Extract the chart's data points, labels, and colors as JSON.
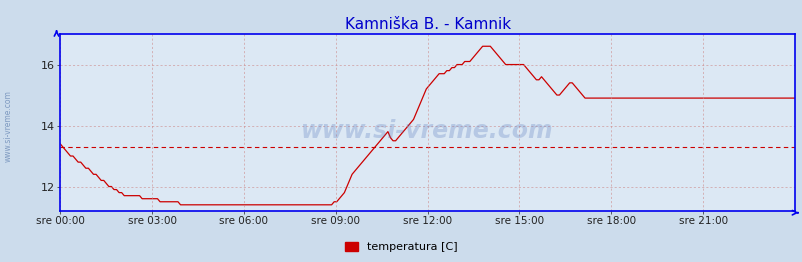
{
  "title": "Kamniška B. - Kamnik",
  "title_color": "#0000cc",
  "title_fontsize": 11,
  "bg_color": "#ccdcec",
  "plot_bg_color": "#dce8f4",
  "line_color": "#cc0000",
  "hline_color": "#cc0000",
  "hline_value": 13.3,
  "ylim": [
    11.2,
    17.0
  ],
  "yticks": [
    12,
    14,
    16
  ],
  "ylabel_color": "#333333",
  "grid_color": "#cc8888",
  "axis_color": "#0000ee",
  "watermark_color": "#5577bb",
  "watermark_text": "www.si-vreme.com",
  "sidebar_text": "www.si-vreme.com",
  "legend_label": "temperatura [C]",
  "legend_color": "#cc0000",
  "x_tick_labels": [
    "sre 00:00",
    "sre 03:00",
    "sre 06:00",
    "sre 09:00",
    "sre 12:00",
    "sre 15:00",
    "sre 18:00",
    "sre 21:00"
  ],
  "temperature_data": [
    13.4,
    13.3,
    13.2,
    13.1,
    13.0,
    13.0,
    12.9,
    12.8,
    12.8,
    12.7,
    12.6,
    12.6,
    12.5,
    12.4,
    12.4,
    12.3,
    12.2,
    12.2,
    12.1,
    12.0,
    12.0,
    11.9,
    11.9,
    11.8,
    11.8,
    11.7,
    11.7,
    11.7,
    11.7,
    11.7,
    11.7,
    11.7,
    11.6,
    11.6,
    11.6,
    11.6,
    11.6,
    11.6,
    11.6,
    11.5,
    11.5,
    11.5,
    11.5,
    11.5,
    11.5,
    11.5,
    11.5,
    11.4,
    11.4,
    11.4,
    11.4,
    11.4,
    11.4,
    11.4,
    11.4,
    11.4,
    11.4,
    11.4,
    11.4,
    11.4,
    11.4,
    11.4,
    11.4,
    11.4,
    11.4,
    11.4,
    11.4,
    11.4,
    11.4,
    11.4,
    11.4,
    11.4,
    11.4,
    11.4,
    11.4,
    11.4,
    11.4,
    11.4,
    11.4,
    11.4,
    11.4,
    11.4,
    11.4,
    11.4,
    11.4,
    11.4,
    11.4,
    11.4,
    11.4,
    11.4,
    11.4,
    11.4,
    11.4,
    11.4,
    11.4,
    11.4,
    11.4,
    11.4,
    11.4,
    11.4,
    11.4,
    11.4,
    11.4,
    11.4,
    11.4,
    11.4,
    11.4,
    11.5,
    11.5,
    11.6,
    11.7,
    11.8,
    12.0,
    12.2,
    12.4,
    12.5,
    12.6,
    12.7,
    12.8,
    12.9,
    13.0,
    13.1,
    13.2,
    13.3,
    13.4,
    13.5,
    13.6,
    13.7,
    13.8,
    13.6,
    13.5,
    13.5,
    13.6,
    13.7,
    13.8,
    13.9,
    14.0,
    14.1,
    14.2,
    14.4,
    14.6,
    14.8,
    15.0,
    15.2,
    15.3,
    15.4,
    15.5,
    15.6,
    15.7,
    15.7,
    15.7,
    15.8,
    15.8,
    15.9,
    15.9,
    16.0,
    16.0,
    16.0,
    16.1,
    16.1,
    16.1,
    16.2,
    16.3,
    16.4,
    16.5,
    16.6,
    16.6,
    16.6,
    16.6,
    16.5,
    16.4,
    16.3,
    16.2,
    16.1,
    16.0,
    16.0,
    16.0,
    16.0,
    16.0,
    16.0,
    16.0,
    16.0,
    15.9,
    15.8,
    15.7,
    15.6,
    15.5,
    15.5,
    15.6,
    15.5,
    15.4,
    15.3,
    15.2,
    15.1,
    15.0,
    15.0,
    15.1,
    15.2,
    15.3,
    15.4,
    15.4,
    15.3,
    15.2,
    15.1,
    15.0,
    14.9,
    14.9,
    14.9,
    14.9,
    14.9,
    14.9,
    14.9,
    14.9,
    14.9,
    14.9,
    14.9,
    14.9,
    14.9,
    14.9,
    14.9,
    14.9,
    14.9,
    14.9,
    14.9,
    14.9,
    14.9,
    14.9,
    14.9,
    14.9,
    14.9,
    14.9,
    14.9,
    14.9,
    14.9,
    14.9,
    14.9,
    14.9,
    14.9,
    14.9,
    14.9,
    14.9,
    14.9,
    14.9,
    14.9,
    14.9,
    14.9,
    14.9,
    14.9,
    14.9,
    14.9,
    14.9,
    14.9,
    14.9,
    14.9,
    14.9,
    14.9,
    14.9,
    14.9,
    14.9,
    14.9,
    14.9,
    14.9,
    14.9,
    14.9,
    14.9,
    14.9,
    14.9,
    14.9,
    14.9,
    14.9,
    14.9,
    14.9,
    14.9,
    14.9,
    14.9,
    14.9,
    14.9,
    14.9,
    14.9,
    14.9,
    14.9,
    14.9,
    14.9,
    14.9,
    14.9,
    14.9,
    14.9,
    14.9
  ]
}
